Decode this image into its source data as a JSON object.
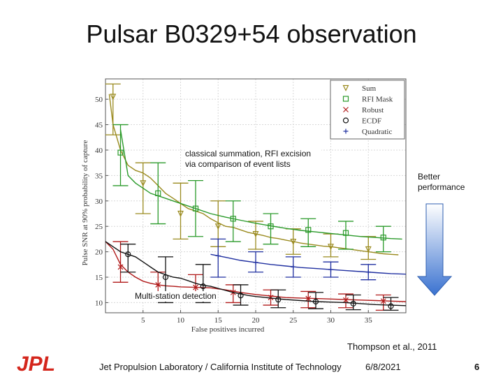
{
  "slide": {
    "title": "Pulsar B0329+54 observation",
    "annotation_top": "classical summation, RFI  excision via comparison of event lists",
    "annotation_bottom": "Multi-station detection",
    "arrow_label": "Better performance",
    "citation": "Thompson et al., 2011",
    "footer_text": "Jet Propulsion Laboratory / California Institute of Technology",
    "date": "6/8/2021",
    "page_number": "6",
    "logo_text": "JPL"
  },
  "colors": {
    "arrow": "#4a7fd6",
    "logo": "#d4261c"
  },
  "chart_data": {
    "type": "line",
    "xlabel": "False positives incurred",
    "ylabel": "Pulse SNR at 90% probability of capture",
    "xlim": [
      0,
      40
    ],
    "ylim": [
      8,
      54
    ],
    "xticks": [
      5,
      10,
      15,
      20,
      25,
      30,
      35
    ],
    "yticks": [
      10,
      15,
      20,
      25,
      30,
      35,
      40,
      45,
      50
    ],
    "legend_position": "top-right",
    "series": [
      {
        "name": "Sum",
        "color": "#9a8a1e",
        "marker": "triangle-down",
        "x": [
          0.5,
          1,
          2,
          3,
          4,
          5,
          6,
          7,
          8,
          9,
          10,
          11,
          12,
          13,
          14,
          15,
          16,
          17,
          18,
          19,
          20,
          21,
          22,
          23,
          24,
          25,
          26,
          27,
          28,
          29,
          30,
          31,
          32,
          33,
          34,
          35,
          36,
          37,
          38,
          39
        ],
        "y": [
          51,
          45,
          40,
          37,
          36,
          35.5,
          34.5,
          33,
          31.5,
          30.5,
          29.5,
          28.5,
          28,
          27.5,
          26.5,
          25.7,
          25,
          24.8,
          24.3,
          23.8,
          23.5,
          23.2,
          22.8,
          22.6,
          22.3,
          22,
          21.7,
          21.5,
          21.3,
          21.1,
          21,
          20.8,
          20.6,
          20.4,
          20.2,
          20,
          19.8,
          19.6,
          19.5,
          19.4
        ],
        "marker_x": [
          1,
          5,
          10,
          15,
          20,
          25,
          30,
          35
        ],
        "marker_y": [
          50.5,
          33.5,
          27.5,
          25,
          23.5,
          22,
          21,
          20.5
        ],
        "err_low": [
          43,
          27.5,
          22.5,
          21,
          20.5,
          19.5,
          19,
          18.5
        ],
        "err_high": [
          53,
          37.5,
          33.5,
          30,
          26,
          24.5,
          23.5,
          23
        ]
      },
      {
        "name": "RFI Mask",
        "color": "#2a9a2a",
        "marker": "square",
        "x": [
          2,
          3,
          4,
          5,
          6,
          7,
          8,
          9,
          10,
          12,
          14,
          16,
          18,
          20,
          22,
          24,
          26,
          28,
          30,
          32,
          34,
          36,
          38,
          39.5
        ],
        "y": [
          44,
          35,
          33.5,
          32.5,
          31.5,
          31,
          30.5,
          30,
          29.5,
          28.5,
          27.5,
          26.8,
          26.2,
          25.6,
          25.1,
          24.6,
          24.2,
          23.9,
          23.6,
          23.3,
          23,
          22.8,
          22.6,
          22.5
        ],
        "marker_x": [
          2,
          7,
          12,
          17,
          22,
          27,
          32,
          37
        ],
        "marker_y": [
          39.5,
          31.5,
          28.5,
          26.5,
          25,
          24.3,
          23.7,
          22.8
        ],
        "err_low": [
          33,
          25.5,
          23,
          22,
          21.5,
          21,
          20.5,
          20
        ],
        "err_high": [
          45,
          37.5,
          34,
          30,
          27.5,
          26.5,
          26,
          25
        ]
      },
      {
        "name": "Robust",
        "color": "#b01818",
        "marker": "x",
        "x": [
          0,
          1,
          2,
          3,
          4,
          5,
          6,
          7,
          8,
          9,
          10,
          12,
          14,
          16,
          18,
          20,
          22,
          24,
          26,
          28,
          30,
          32,
          34,
          36,
          38,
          40
        ],
        "y": [
          22,
          20.5,
          17.5,
          16,
          15,
          14.2,
          13.8,
          13.5,
          13.3,
          13.2,
          13.1,
          13,
          12.9,
          12.5,
          12,
          11.6,
          11.3,
          11,
          10.9,
          10.8,
          10.7,
          10.6,
          10.5,
          10.4,
          10.3,
          10.2
        ],
        "marker_x": [
          2,
          7,
          12,
          17,
          22,
          27,
          32,
          37
        ],
        "marker_y": [
          17,
          13.5,
          13,
          12,
          11,
          10.8,
          10.5,
          10.3
        ],
        "err_low": [
          14,
          11,
          11,
          10,
          9.5,
          9,
          9,
          8.5
        ],
        "err_high": [
          22,
          16,
          15.5,
          13.5,
          12.5,
          12.2,
          11.7,
          11.5
        ]
      },
      {
        "name": "ECDF",
        "color": "#111111",
        "marker": "circle",
        "x": [
          0,
          1,
          2,
          3,
          4,
          5,
          6,
          7,
          8,
          9,
          10,
          11,
          12,
          13,
          14,
          15,
          16,
          17,
          18,
          19,
          20,
          22,
          24,
          26,
          28,
          30,
          32,
          34,
          36,
          38,
          40
        ],
        "y": [
          22,
          21,
          20,
          19.5,
          19,
          18,
          17,
          16,
          15.5,
          15,
          14.8,
          14.3,
          13.8,
          13.4,
          13.2,
          12.8,
          12.4,
          12,
          11.7,
          11.4,
          11.2,
          10.9,
          10.6,
          10.4,
          10.2,
          10.1,
          10,
          9.8,
          9.6,
          9.5,
          9.4
        ],
        "marker_x": [
          3,
          8,
          13,
          18,
          23,
          28,
          33,
          38
        ],
        "marker_y": [
          19.5,
          15,
          13.2,
          11.4,
          10.6,
          10.2,
          9.8,
          9.3
        ],
        "err_low": [
          16,
          10,
          10,
          9.5,
          9,
          8.8,
          8.6,
          8.5
        ],
        "err_high": [
          21.5,
          19,
          17.5,
          13.5,
          12.5,
          12,
          11.5,
          11
        ]
      },
      {
        "name": "Quadratic",
        "color": "#1f2fa0",
        "marker": "plus",
        "x": [
          14,
          16,
          18,
          20,
          22,
          24,
          26,
          28,
          30,
          32,
          34,
          36,
          38,
          40
        ],
        "y": [
          19.5,
          18.9,
          18.3,
          17.9,
          17.5,
          17.2,
          16.9,
          16.7,
          16.5,
          16.3,
          16.1,
          15.9,
          15.7,
          15.6
        ],
        "marker_x": [
          15,
          20,
          25,
          30,
          35
        ],
        "marker_y": [
          19.2,
          17.9,
          17,
          16.5,
          16
        ],
        "err_low": [
          15,
          16,
          15,
          15,
          14.5
        ],
        "err_high": [
          22.5,
          20,
          19,
          18,
          17.5
        ]
      }
    ]
  }
}
